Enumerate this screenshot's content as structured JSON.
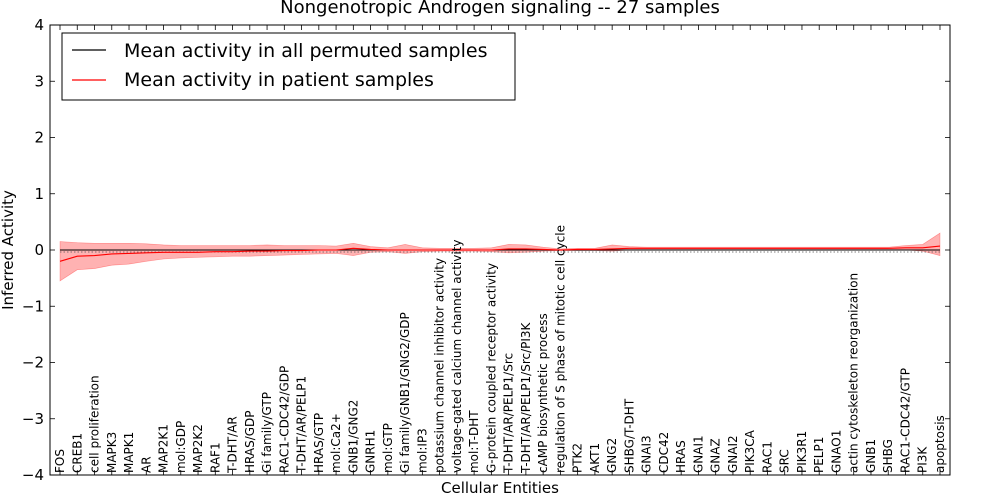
{
  "chart_data": {
    "type": "line",
    "title": "Nongenotropic Androgen signaling -- 27 samples",
    "xlabel": "Cellular Entities",
    "ylabel": "Inferred Activity",
    "ylim": [
      -4,
      4
    ],
    "yticks": [
      "−4",
      "−3",
      "−2",
      "−1",
      "0",
      "1",
      "2",
      "3",
      "4"
    ],
    "grid": false,
    "legend_position": "top-left",
    "categories": [
      "FOS",
      "CREB1",
      "cell proliferation",
      "MAPK3",
      "MAPK1",
      "AR",
      "MAP2K1",
      "mol:GDP",
      "MAP2K2",
      "RAF1",
      "T-DHT/AR",
      "HRAS/GDP",
      "Gi family/GTP",
      "RAC1-CDC42/GDP",
      "T-DHT/AR/PELP1",
      "HRAS/GTP",
      "mol:Ca2+",
      "GNB1/GNG2",
      "GNRH1",
      "mol:GTP",
      "Gi family/GNB1/GNG2/GDP",
      "mol:IP3",
      "potassium channel inhibitor activity",
      "voltage-gated calcium channel activity",
      "mol:T-DHT",
      "G-protein coupled receptor activity",
      "T-DHT/AR/PELP1/Src",
      "T-DHT/AR/PELP1/Src/PI3K",
      "cAMP biosynthetic process",
      "regulation of S phase of mitotic cell cycle",
      "PTK2",
      "AKT1",
      "GNG2",
      "SHBG/T-DHT",
      "GNAI3",
      "CDC42",
      "HRAS",
      "GNAI1",
      "GNAZ",
      "GNAI2",
      "PIK3CA",
      "RAC1",
      "SRC",
      "PIK3R1",
      "PELP1",
      "GNAO1",
      "actin cytoskeleton reorganization",
      "GNB1",
      "SHBG",
      "RAC1-CDC42/GTP",
      "PI3K",
      "apoptosis"
    ],
    "series": [
      {
        "name": "Mean activity in all permuted samples",
        "color": "#000000",
        "values": [
          0.0,
          0.0,
          0.0,
          0.0,
          0.0,
          0.0,
          0.0,
          0.0,
          0.0,
          0.0,
          0.0,
          0.0,
          0.0,
          0.0,
          0.0,
          0.0,
          0.0,
          0.0,
          0.0,
          0.0,
          0.0,
          0.0,
          0.0,
          0.0,
          0.0,
          0.0,
          0.0,
          0.0,
          0.0,
          0.0,
          0.0,
          0.0,
          0.0,
          0.0,
          0.0,
          0.0,
          0.0,
          0.0,
          0.0,
          0.0,
          0.0,
          0.0,
          0.0,
          0.0,
          0.0,
          0.0,
          0.0,
          0.0,
          0.0,
          0.0,
          0.0,
          0.0
        ]
      },
      {
        "name": "Mean activity in patient samples",
        "color": "#ff0000",
        "values": [
          -0.2,
          -0.11,
          -0.1,
          -0.07,
          -0.06,
          -0.05,
          -0.04,
          -0.04,
          -0.04,
          -0.03,
          -0.03,
          -0.02,
          -0.02,
          -0.01,
          -0.01,
          0.0,
          0.0,
          0.03,
          0.01,
          0.0,
          0.0,
          0.0,
          0.0,
          0.0,
          0.0,
          0.0,
          0.02,
          0.02,
          0.01,
          0.0,
          0.01,
          0.01,
          0.02,
          0.03,
          0.03,
          0.03,
          0.03,
          0.03,
          0.03,
          0.03,
          0.03,
          0.03,
          0.03,
          0.03,
          0.03,
          0.03,
          0.03,
          0.03,
          0.03,
          0.04,
          0.04,
          0.07
        ],
        "lower": [
          -0.55,
          -0.35,
          -0.33,
          -0.27,
          -0.25,
          -0.2,
          -0.16,
          -0.14,
          -0.13,
          -0.12,
          -0.11,
          -0.11,
          -0.1,
          -0.09,
          -0.08,
          -0.07,
          -0.06,
          -0.1,
          -0.04,
          -0.03,
          -0.06,
          -0.03,
          -0.02,
          -0.02,
          -0.02,
          -0.03,
          -0.05,
          -0.04,
          -0.02,
          -0.01,
          -0.01,
          -0.01,
          -0.02,
          0.0,
          0.0,
          0.0,
          0.0,
          0.0,
          0.0,
          0.0,
          0.0,
          0.0,
          0.0,
          0.0,
          0.0,
          0.0,
          0.0,
          0.0,
          0.0,
          0.0,
          -0.02,
          -0.1
        ],
        "upper": [
          0.15,
          0.13,
          0.12,
          0.12,
          0.12,
          0.11,
          0.09,
          0.08,
          0.08,
          0.08,
          0.08,
          0.08,
          0.09,
          0.08,
          0.08,
          0.08,
          0.07,
          0.12,
          0.06,
          0.04,
          0.1,
          0.04,
          0.03,
          0.03,
          0.03,
          0.04,
          0.1,
          0.09,
          0.05,
          0.02,
          0.03,
          0.03,
          0.09,
          0.06,
          0.05,
          0.05,
          0.05,
          0.05,
          0.05,
          0.05,
          0.05,
          0.05,
          0.05,
          0.05,
          0.05,
          0.05,
          0.05,
          0.05,
          0.05,
          0.08,
          0.1,
          0.3
        ]
      }
    ]
  }
}
